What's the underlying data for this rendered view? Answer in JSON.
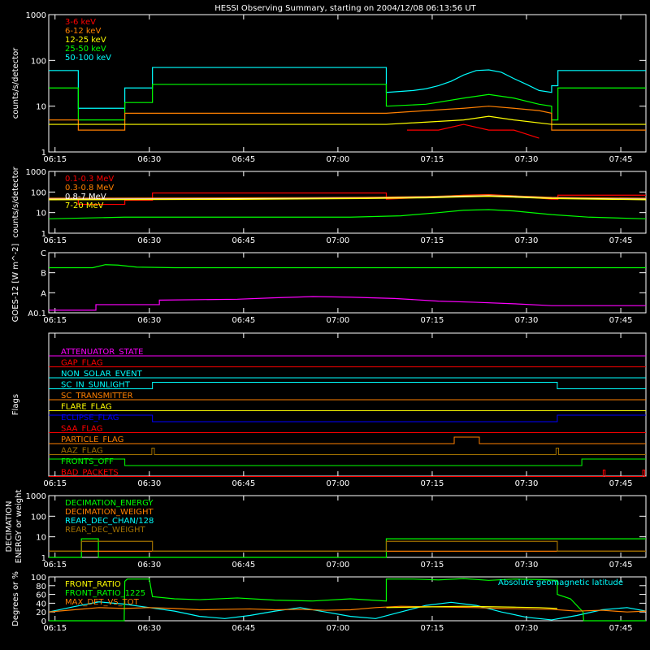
{
  "title": "HESSI Observing Summary, starting on 2004/12/08 06:13:56 UT",
  "time_labels": [
    "06:15",
    "06:30",
    "06:45",
    "07:00",
    "07:15",
    "07:30",
    "07:45"
  ],
  "colors": {
    "white": "#ffffff",
    "red": "#ff0000",
    "orange": "#ff7f00",
    "yellow": "#ffff00",
    "green": "#00ff00",
    "cyan": "#00ffff",
    "magenta": "#ff00ff",
    "blue": "#0000ff",
    "darkorange": "#d08000",
    "brown": "#a07000"
  },
  "chart_data": [
    {
      "id": "p1",
      "type": "line",
      "ylabel": "counts/s/detector",
      "yscale": "log",
      "ylim": [
        1,
        1000
      ],
      "yticks": [
        "1",
        "10",
        "100",
        "1000"
      ],
      "legend": [
        "3-6 keV",
        "6-12 keV",
        "12-25 keV",
        "25-50 keV",
        "50-100 keV"
      ],
      "legend_colors": [
        "#ff0000",
        "#ff7f00",
        "#ffff00",
        "#00ff00",
        "#00ffff"
      ],
      "series": [
        {
          "name": "50-100 keV",
          "color": "#00ffff",
          "x": [
            0,
            4.7,
            4.7,
            12.1,
            12.1,
            16.5,
            16.5,
            53.7,
            53.7,
            56,
            58,
            60,
            62,
            64,
            66,
            68,
            70,
            72,
            74,
            76,
            78,
            80,
            80,
            81,
            81,
            95
          ],
          "y": [
            60,
            60,
            9,
            9,
            25,
            25,
            70,
            70,
            20,
            21,
            22,
            24,
            28,
            35,
            48,
            60,
            62,
            55,
            40,
            30,
            22,
            20,
            28,
            28,
            60,
            60
          ]
        },
        {
          "name": "25-50 keV",
          "color": "#00ff00",
          "x": [
            0,
            4.7,
            4.7,
            12.1,
            12.1,
            16.5,
            16.5,
            53.7,
            53.7,
            60,
            66,
            70,
            74,
            78,
            80,
            80,
            81,
            81,
            95
          ],
          "y": [
            25,
            25,
            5,
            5,
            12,
            12,
            30,
            30,
            10,
            11,
            15,
            18,
            15,
            11,
            10,
            5,
            5,
            25,
            25
          ]
        },
        {
          "name": "6-12 keV",
          "color": "#ff7f00",
          "x": [
            0,
            4.7,
            4.7,
            12.1,
            12.1,
            16.5,
            16.5,
            53.7,
            53.7,
            60,
            66,
            70,
            74,
            78,
            80,
            80,
            95
          ],
          "y": [
            5,
            5,
            3,
            3,
            7,
            7,
            7,
            7,
            7,
            8,
            9,
            10,
            9,
            8,
            7,
            3,
            3
          ]
        },
        {
          "name": "12-25 keV",
          "color": "#ffff00",
          "x": [
            0,
            4.7,
            4.7,
            12.1,
            12.1,
            53.7,
            53.7,
            66,
            70,
            74,
            80,
            80,
            95
          ],
          "y": [
            4,
            4,
            4,
            4,
            4,
            4,
            4,
            5,
            6,
            5,
            4,
            4,
            4
          ]
        },
        {
          "name": "3-6 keV",
          "color": "#ff0000",
          "x": [
            57,
            62,
            66,
            70,
            74,
            78
          ],
          "y": [
            3,
            3,
            4,
            3,
            3,
            2
          ]
        }
      ]
    },
    {
      "id": "p2",
      "type": "line",
      "ylabel": "counts/s/detector",
      "yscale": "log",
      "ylim": [
        1,
        1000
      ],
      "yticks": [
        "1",
        "10",
        "100",
        "1000"
      ],
      "legend": [
        "0.1-0.3 MeV",
        "0.3-0.8 MeV",
        "0.8-7 MeV",
        "7-20 MeV"
      ],
      "legend_colors": [
        "#ff0000",
        "#ff7f00",
        "#ffffff",
        "#ffff00"
      ],
      "series": [
        {
          "name": "0.1-0.3 MeV",
          "color": "#ff0000",
          "x": [
            0,
            4.7,
            4.7,
            12.1,
            12.1,
            16.5,
            16.5,
            53.7,
            53.7,
            60,
            66,
            70,
            74,
            78,
            80,
            80,
            81,
            81,
            95
          ],
          "y": [
            45,
            45,
            25,
            25,
            40,
            40,
            90,
            90,
            45,
            55,
            70,
            75,
            65,
            50,
            45,
            45,
            45,
            70,
            70
          ]
        },
        {
          "name": "0.3-0.8 MeV",
          "color": "#ff7f00",
          "x": [
            0,
            30,
            50,
            60,
            66,
            70,
            74,
            80,
            95
          ],
          "y": [
            50,
            52,
            55,
            60,
            68,
            72,
            65,
            55,
            50
          ]
        },
        {
          "name": "0.8-7 MeV",
          "color": "#ffffff",
          "x": [
            0,
            30,
            50,
            60,
            66,
            70,
            74,
            80,
            95
          ],
          "y": [
            45,
            47,
            50,
            55,
            62,
            65,
            60,
            50,
            45
          ]
        },
        {
          "name": "7-20 MeV",
          "color": "#ffff00",
          "x": [
            0,
            30,
            50,
            60,
            66,
            70,
            74,
            80,
            95
          ],
          "y": [
            42,
            44,
            48,
            52,
            58,
            62,
            56,
            48,
            42
          ]
        },
        {
          "name": "green",
          "color": "#00ff00",
          "x": [
            0,
            12,
            24,
            36,
            48,
            56,
            62,
            66,
            70,
            74,
            80,
            86,
            95
          ],
          "y": [
            5,
            6,
            6,
            6,
            6,
            7,
            10,
            13,
            14,
            12,
            8,
            6,
            5
          ]
        }
      ]
    },
    {
      "id": "p3",
      "type": "line",
      "ylabel": "GOES-12 [W m^-2]",
      "yscale": "log",
      "ylim": [
        0.1,
        1000
      ],
      "yticks": [
        "A0.1",
        "A",
        "B",
        "C"
      ],
      "series": [
        {
          "name": "green",
          "color": "#00ff00",
          "x": [
            0,
            7,
            9,
            11,
            14,
            20,
            95
          ],
          "y": [
            100,
            100,
            160,
            150,
            110,
            100,
            100
          ]
        },
        {
          "name": "magenta",
          "color": "#ff00ff",
          "x": [
            0,
            7.5,
            7.5,
            12.8,
            12.8,
            17.6,
            17.6,
            30,
            36,
            42,
            48,
            55,
            62,
            68,
            74,
            80,
            95
          ],
          "y": [
            0.15,
            0.15,
            0.35,
            0.35,
            0.35,
            0.35,
            0.7,
            0.8,
            1.0,
            1.2,
            1.1,
            0.9,
            0.6,
            0.5,
            0.4,
            0.3,
            0.3
          ]
        }
      ]
    },
    {
      "id": "p4",
      "type": "flags",
      "ylabel": "Flags",
      "flags": [
        {
          "name": "ATTENUATOR_STATE",
          "color": "#ff00ff",
          "x": [
            0,
            95
          ],
          "y": [
            0,
            0
          ]
        },
        {
          "name": "GAP_FLAG",
          "color": "#ff0000",
          "x": [
            0,
            95
          ],
          "y": [
            0,
            0
          ]
        },
        {
          "name": "NON_SOLAR_EVENT",
          "color": "#00ffff",
          "x": [
            0,
            95
          ],
          "y": [
            0,
            0
          ]
        },
        {
          "name": "SC_IN_SUNLIGHT",
          "color": "#00ffff",
          "x": [
            0,
            16.5,
            16.5,
            80.9,
            80.9,
            95
          ],
          "y": [
            0,
            0,
            1,
            1,
            0,
            0
          ]
        },
        {
          "name": "SC_TRANSMITTER",
          "color": "#ff7f00",
          "x": [
            0,
            95
          ],
          "y": [
            0,
            0
          ]
        },
        {
          "name": "FLARE_FLAG",
          "color": "#ffff00",
          "x": [
            0,
            95
          ],
          "y": [
            0,
            0
          ]
        },
        {
          "name": "ECLIPSE_FLAG",
          "color": "#0000ff",
          "x": [
            0,
            16.5,
            16.5,
            80.9,
            80.9,
            95
          ],
          "y": [
            1,
            1,
            0,
            0,
            1,
            1
          ]
        },
        {
          "name": "SAA_FLAG",
          "color": "#ff0000",
          "x": [
            0,
            95
          ],
          "y": [
            0,
            0
          ]
        },
        {
          "name": "PARTICLE_FLAG",
          "color": "#ff7f00",
          "x": [
            0,
            64.5,
            64.5,
            68.5,
            68.5,
            95
          ],
          "y": [
            0,
            0,
            1,
            1,
            0,
            0
          ]
        },
        {
          "name": "AAZ_FLAG",
          "color": "#a07000",
          "x": [
            0,
            16.4,
            16.4,
            16.8,
            16.8,
            80.7,
            80.7,
            81.1,
            81.1,
            95
          ],
          "y": [
            0,
            0,
            1,
            1,
            0,
            0,
            1,
            1,
            0,
            0
          ]
        },
        {
          "name": "FRONTS_OFF",
          "color": "#00ff00",
          "x": [
            0,
            12.1,
            12.1,
            84.8,
            84.8,
            95
          ],
          "y": [
            1,
            1,
            0,
            0,
            1,
            1
          ]
        },
        {
          "name": "BAD_PACKETS",
          "color": "#ff0000",
          "x": [
            0,
            88.2,
            88.2,
            88.5,
            88.5,
            94.5,
            94.5,
            94.8,
            94.8,
            95
          ],
          "y": [
            0,
            0,
            1,
            1,
            0,
            0,
            1,
            1,
            0,
            0
          ]
        }
      ]
    },
    {
      "id": "p5",
      "type": "line",
      "ylabel": "DECIMATION ENERGY or weight",
      "yscale": "log",
      "ylim": [
        1,
        1000
      ],
      "yticks": [
        "1",
        "10",
        "100",
        "1000"
      ],
      "legend": [
        "DECIMATION_ENERGY",
        "DECIMATION_WEIGHT",
        "REAR_DEC_CHAN/128",
        "REAR_DEC_WEIGHT"
      ],
      "legend_colors": [
        "#00ff00",
        "#ff7f00",
        "#00ffff",
        "#a07000"
      ],
      "series": [
        {
          "name": "DECIMATION_ENERGY",
          "color": "#00ff00",
          "x": [
            0,
            5.2,
            5.2,
            7.9,
            7.9,
            53.7,
            53.7,
            80.9,
            80.9,
            95
          ],
          "y": [
            1,
            1,
            8,
            8,
            1,
            1,
            8,
            8,
            8,
            8
          ]
        },
        {
          "name": "DECIMATION_WEIGHT",
          "color": "#ff7f00",
          "x": [
            0,
            95
          ],
          "y": [
            2,
            2
          ]
        },
        {
          "name": "REAR_DEC_CHAN",
          "color": "#a07000",
          "x": [
            0,
            5.2,
            5.2,
            16.5,
            16.5,
            53.7,
            53.7,
            80.9,
            80.9,
            95
          ],
          "y": [
            2,
            2,
            6,
            6,
            2,
            2,
            6,
            6,
            2,
            2
          ]
        }
      ]
    },
    {
      "id": "p6",
      "type": "line",
      "ylabel": "Degrees or %",
      "ylim": [
        0,
        100
      ],
      "yticks": [
        "0",
        "20",
        "40",
        "60",
        "80",
        "100"
      ],
      "legend": [
        "FRONT_RATIO",
        "FRONT_RATIO_1225",
        "MAX_DET_VS_TOT"
      ],
      "legend_colors": [
        "#ffff00",
        "#00ff00",
        "#ff7f00"
      ],
      "annotation": "Absolute geomagnetic latitude",
      "series": [
        {
          "name": "Absolute geomagnetic latitude",
          "color": "#00ffff",
          "x": [
            0,
            4,
            8,
            12,
            16,
            20,
            24,
            28,
            32,
            36,
            40,
            44,
            48,
            52,
            56,
            60,
            64,
            68,
            72,
            76,
            80,
            84,
            88,
            92,
            95
          ],
          "y": [
            20,
            32,
            43,
            38,
            30,
            22,
            10,
            5,
            12,
            22,
            30,
            20,
            10,
            5,
            20,
            35,
            42,
            35,
            20,
            8,
            2,
            12,
            25,
            30,
            22
          ]
        },
        {
          "name": "FRONT_RATIO_1225",
          "color": "#00ff00",
          "x": [
            0,
            12,
            12.1,
            12.5,
            16,
            16.5,
            20,
            24,
            30,
            36,
            42,
            48,
            53.7,
            53.7,
            58,
            62,
            66,
            70,
            74,
            78,
            80.9,
            80.9,
            83,
            85,
            85.1,
            95
          ],
          "y": [
            0,
            0,
            90,
            95,
            95,
            55,
            50,
            48,
            52,
            47,
            45,
            50,
            45,
            95,
            95,
            93,
            96,
            92,
            95,
            94,
            92,
            60,
            50,
            20,
            0,
            0
          ]
        },
        {
          "name": "MAX_DET_VS_TOT",
          "color": "#ff7f00",
          "x": [
            0,
            4,
            8,
            12,
            16,
            20,
            24,
            28,
            32,
            36,
            40,
            44,
            48,
            52,
            56,
            60,
            64,
            68,
            72,
            76,
            80,
            84,
            88,
            92,
            95
          ],
          "y": [
            20,
            25,
            30,
            28,
            30,
            28,
            25,
            26,
            27,
            25,
            26,
            24,
            25,
            30,
            33,
            32,
            31,
            30,
            28,
            27,
            26,
            22,
            24,
            20,
            22
          ]
        },
        {
          "name": "FRONT_RATIO",
          "color": "#ffff00",
          "x": [
            53.7,
            58,
            62,
            66,
            70,
            74,
            78,
            80.9
          ],
          "y": [
            30,
            31,
            32,
            33,
            32,
            31,
            30,
            28
          ]
        }
      ]
    }
  ]
}
